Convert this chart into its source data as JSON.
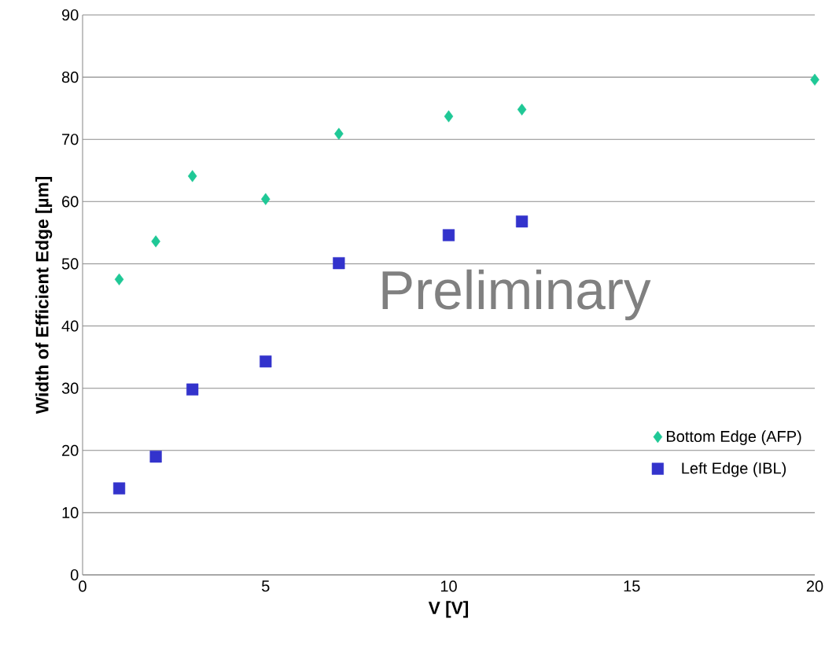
{
  "chart_data": {
    "type": "scatter",
    "xlabel": "V [V]",
    "ylabel": "Width of Efficient Edge [µm]",
    "xlim": [
      0,
      20
    ],
    "xticks": [
      0,
      5,
      10,
      15,
      20
    ],
    "ylim": [
      0,
      90
    ],
    "yticks": [
      0,
      10,
      20,
      30,
      40,
      50,
      60,
      70,
      80,
      90
    ],
    "grid": "y",
    "legend": "bottom right",
    "annotations": [
      "Preliminary"
    ],
    "series": [
      {
        "name": "Bottom Edge (AFP)",
        "color": "#1fc896",
        "marker": "diamond",
        "x": [
          1,
          2,
          3,
          5,
          7,
          10,
          12,
          20
        ],
        "values": [
          47.5,
          53.6,
          64.1,
          60.4,
          70.9,
          73.7,
          74.8,
          79.6
        ]
      },
      {
        "name": "Left Edge (IBL)",
        "color": "#3333cc",
        "marker": "square",
        "x": [
          1,
          2,
          3,
          5,
          7,
          10,
          12
        ],
        "values": [
          13.9,
          19.0,
          29.8,
          34.3,
          50.1,
          54.6,
          56.8
        ]
      }
    ]
  }
}
